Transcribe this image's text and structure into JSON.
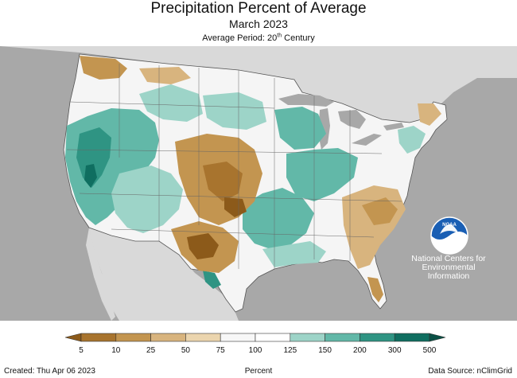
{
  "header": {
    "title": "Precipitation Percent of Average",
    "subtitle": "March 2023",
    "period_prefix": "Average Period: 20",
    "period_sup": "th",
    "period_suffix": " Century"
  },
  "logo": {
    "text": "NOAA",
    "caption": "National Centers for Environmental Information"
  },
  "legend": {
    "ticks": [
      "5",
      "10",
      "25",
      "50",
      "75",
      "100",
      "125",
      "150",
      "200",
      "300",
      "500"
    ],
    "colors": [
      "#8c5a1a",
      "#a8742e",
      "#c39550",
      "#d8b47e",
      "#ebd5ae",
      "#f7f7f7",
      "#ffffff",
      "#9dd4c8",
      "#62b8a8",
      "#2f9483",
      "#0f6e60",
      "#0a5045"
    ],
    "unit_label": "Percent"
  },
  "footer": {
    "created": "Created: Thu Apr 06 2023",
    "source": "Data Source: nClimGrid"
  },
  "colors": {
    "background_land": "#d9d9d9",
    "water": "#a8a8a8",
    "dry_dark": "#8c5a1a",
    "dry": "#c39550",
    "dry_light": "#e4c591",
    "normal": "#f5f5f5",
    "wet_light": "#9dd4c8",
    "wet": "#62b8a8",
    "wet_dark": "#2f9483"
  }
}
